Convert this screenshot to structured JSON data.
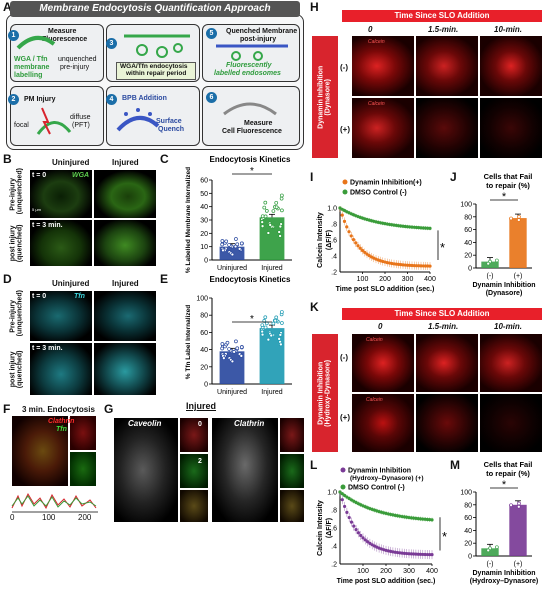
{
  "panels": {
    "A": "A",
    "B": "B",
    "C": "C",
    "D": "D",
    "E": "E",
    "F": "F",
    "G": "G",
    "H": "H",
    "I": "I",
    "J": "J",
    "K": "K",
    "L": "L",
    "M": "M"
  },
  "A": {
    "title": "Membrane Endocytosis Quantification Approach",
    "steps": {
      "s1": {
        "num": "1",
        "label1": "WGA / Tfn",
        "label2": "membrane",
        "label3": "labelling",
        "top": "Measure",
        "top2": "Fluorescence",
        "mid": "unquenched",
        "mid2": "pre-injury"
      },
      "s2": {
        "num": "2",
        "label": "PM Injury",
        "focal": "focal",
        "diffuse": "diffuse",
        "pft": "(PFT)"
      },
      "s3": {
        "num": "3",
        "label1": "WGA/Tfn endocytosis",
        "label2": "within repair period"
      },
      "s4": {
        "num": "4",
        "label": "BPB Addition",
        "sq1": "Surface",
        "sq2": "Quench"
      },
      "s5": {
        "num": "5",
        "label1": "Quenched Membrane",
        "label2": "post-injury",
        "g1": "Fluorescently",
        "g2": "labelled endosomes"
      },
      "s6": {
        "num": "6",
        "label1": "Measure",
        "label2": "Cell Fluorescence"
      }
    }
  },
  "B": {
    "uninjured": "Uninjured",
    "injured": "Injured",
    "t0": "t = 0",
    "wga": "WGA",
    "t3": "t = 3 min.",
    "row1": "Pre-injury",
    "row1b": "(unquenched)",
    "row2": "post injury",
    "row2b": "(quenched)",
    "scale": "5 μm"
  },
  "C": {
    "title": "Endocytosis Kinetics",
    "ylabel": "% Labelled Membrane Internalized",
    "star": "*"
  },
  "D": {
    "uninjured": "Uninjured",
    "injured": "Injured",
    "t0": "t = 0",
    "tfn": "Tfn",
    "t3": "t = 3 min.",
    "row1": "Pre-injury",
    "row1b": "(unquenched)",
    "row2": "post injury",
    "row2b": "(quenched)"
  },
  "E": {
    "title": "Endocytosis Kinetics",
    "ylabel": "% Tfn Label Internalized",
    "star": "*"
  },
  "F": {
    "title": "3 min. Endocytosis",
    "clathrin": "Clathrin",
    "tfn": "Tfn",
    "xticks": [
      "0",
      "100",
      "200"
    ]
  },
  "G": {
    "injured": "Injured",
    "caveolin": "Caveolin",
    "clathrin": "Clathrin",
    "n0": "0",
    "n2": "2"
  },
  "H": {
    "header": "Time Since SLO Addition",
    "times": [
      "0",
      "1.5-min.",
      "10-min."
    ],
    "side": "Dynamin Inhibition",
    "side2": "(Dynasore)",
    "minus": "(-)",
    "plus": "(+)",
    "calcein": "Calcein"
  },
  "I": {
    "legend1": "Dynamin Inhibition",
    "legend1b": "(+)",
    "legend2": "DMSO Control (-)",
    "ylabel": "Calcein Intensity",
    "ylabel2": "(ΔF/F)",
    "xlabel": "Time post SLO addition (sec.)",
    "star": "*"
  },
  "J": {
    "title": "Cells that Fail",
    "title2": "to repair (%)",
    "cats": [
      "(-)",
      "(+)"
    ],
    "xlabel": "Dynamin Inhibition",
    "xlabel2": "(Dynasore)",
    "star": "*"
  },
  "K": {
    "header": "Time Since SLO Addition",
    "times": [
      "0",
      "1.5-min.",
      "10-min."
    ],
    "side": "Dynamin Inhibition",
    "side2": "(Hydroxy-Dynasore)",
    "minus": "(-)",
    "plus": "(+)",
    "calcein": "Calcein"
  },
  "L": {
    "legend1": "Dynamin Inhibition",
    "legend1b": "(Hydroxy–Dynasore) (+)",
    "legend2": "DMSO Control (-)",
    "ylabel": "Calcein Intensity",
    "ylabel2": "(ΔF/F)",
    "xlabel": "Time post SLO  addition (sec.)",
    "star": "*"
  },
  "M": {
    "title": "Cells that Fail",
    "title2": "to repair (%)",
    "cats": [
      "(-)",
      "(+)"
    ],
    "xlabel": "Dynamin Inhibition",
    "xlabel2": "(Hydroxy–Dynasore)",
    "star": "*"
  },
  "chart_data": [
    {
      "id": "C",
      "type": "bar",
      "categories": [
        "Uninjured",
        "Injured"
      ],
      "values": [
        10,
        32
      ],
      "ylim": [
        0,
        60
      ],
      "yticks": [
        0,
        10,
        20,
        30,
        40,
        50,
        60
      ],
      "colors": [
        "#2b4aa0",
        "#2e9b3c"
      ],
      "title": "Endocytosis Kinetics",
      "ylabel": "% Labelled Membrane Internalized"
    },
    {
      "id": "E",
      "type": "bar",
      "categories": [
        "Uninjured",
        "Injured"
      ],
      "values": [
        38,
        65
      ],
      "ylim": [
        0,
        100
      ],
      "yticks": [
        0,
        20,
        40,
        60,
        80,
        100
      ],
      "colors": [
        "#2b4aa0",
        "#1f9bb3"
      ],
      "title": "Endocytosis Kinetics",
      "ylabel": "% Tfn Label Internalized"
    },
    {
      "id": "I",
      "type": "line",
      "x": [
        0,
        400
      ],
      "xticks": [
        100,
        200,
        300,
        400
      ],
      "ylim": [
        0.2,
        1.0
      ],
      "yticks": [
        "1.0",
        ".8",
        ".6",
        ".4",
        ".2"
      ],
      "series": [
        {
          "name": "Dynamin Inhibition (+)",
          "color": "#e8751a",
          "start": 1.0,
          "end": 0.27
        },
        {
          "name": "DMSO Control (-)",
          "color": "#3a9c3a",
          "start": 1.0,
          "end": 0.72
        }
      ]
    },
    {
      "id": "J",
      "type": "bar",
      "categories": [
        "(-)",
        "(+)"
      ],
      "values": [
        10,
        78
      ],
      "ylim": [
        0,
        100
      ],
      "yticks": [
        0,
        20,
        40,
        60,
        80,
        100
      ],
      "colors": [
        "#3fa34d",
        "#e8751a"
      ]
    },
    {
      "id": "L",
      "type": "line",
      "x": [
        0,
        400
      ],
      "xticks": [
        100,
        200,
        300,
        400
      ],
      "ylim": [
        0.2,
        1.0
      ],
      "yticks": [
        "1.0",
        ".8",
        ".6",
        ".4",
        ".2"
      ],
      "series": [
        {
          "name": "Dynamin Inhibition (Hydroxy–Dynasore) (+)",
          "color": "#7a3b96",
          "start": 1.0,
          "end": 0.3
        },
        {
          "name": "DMSO Control (-)",
          "color": "#3a9c3a",
          "start": 1.0,
          "end": 0.66
        }
      ]
    },
    {
      "id": "M",
      "type": "bar",
      "categories": [
        "(-)",
        "(+)"
      ],
      "values": [
        12,
        80
      ],
      "ylim": [
        0,
        100
      ],
      "yticks": [
        0,
        20,
        40,
        60,
        80,
        100
      ],
      "colors": [
        "#3fa34d",
        "#7a3b96"
      ]
    }
  ]
}
